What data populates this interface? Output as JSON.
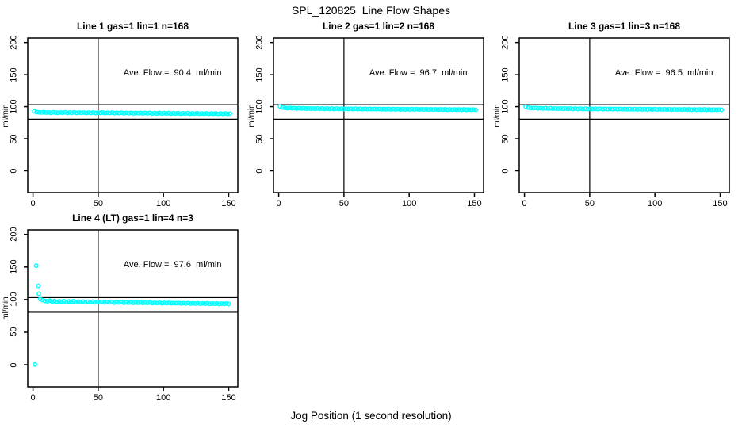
{
  "chart_data": {
    "type": "scatter",
    "title": "SPL_120825  Line Flow Shapes",
    "xlabel": "Jog Position (1 second resolution)",
    "ylabel": "ml/min",
    "x_ticks": [
      0,
      50,
      100,
      150
    ],
    "y_ticks": [
      0,
      50,
      100,
      150,
      200
    ],
    "xlim": [
      -4,
      157
    ],
    "ylim": [
      -34,
      207
    ],
    "grid": false,
    "legend": "none",
    "point_color": "#00FFFF",
    "axis_color": "#000000",
    "reference_lines": {
      "vertical_x": 50,
      "horizontal_y": [
        103,
        80.5
      ]
    },
    "subplots": [
      {
        "title": "Line 1 gas=1 lin=1 n=168",
        "annotation": "Ave. Flow =  90.4  ml/min",
        "ave_flow_ml_min": 90.4,
        "n": 168,
        "x_start": 1,
        "x_end": 151,
        "y": [
          92.8,
          91.6,
          91.2,
          90.9,
          91.4,
          90.7,
          91.1,
          90.5,
          91.3,
          90.8,
          90.4,
          91.0,
          90.6,
          91.2,
          90.3,
          90.9,
          90.5,
          91.1,
          90.2,
          90.8,
          90.4,
          91.0,
          90.1,
          90.7,
          90.3,
          90.9,
          90.0,
          90.6,
          90.2,
          90.8,
          89.9,
          90.5,
          90.1,
          90.7,
          89.8,
          90.4,
          90.0,
          90.6,
          89.7,
          90.3,
          89.9,
          90.5,
          89.6,
          90.2,
          89.8,
          90.4,
          89.5,
          90.1,
          89.7,
          90.3,
          89.4,
          90.0,
          89.6,
          90.2,
          89.3,
          89.9,
          89.5,
          90.1,
          89.2,
          89.8,
          89.4,
          90.0,
          89.1,
          89.7,
          89.3,
          89.9,
          89.0,
          89.6,
          89.2,
          89.8,
          88.9,
          89.5,
          89.1,
          89.7,
          88.8,
          89.4,
          89.0,
          89.6,
          88.7,
          89.3,
          88.9,
          89.5,
          88.6,
          89.2
        ],
        "outliers": []
      },
      {
        "title": "Line 2 gas=1 lin=2 n=168",
        "annotation": "Ave. Flow =  96.7  ml/min",
        "ave_flow_ml_min": 96.7,
        "n": 168,
        "x_start": 1,
        "x_end": 151,
        "y": [
          100.3,
          98.9,
          98.2,
          97.8,
          98.1,
          97.5,
          97.9,
          97.3,
          97.7,
          97.2,
          97.6,
          97.0,
          97.4,
          96.9,
          97.3,
          96.8,
          97.2,
          96.7,
          97.1,
          96.6,
          97.0,
          96.6,
          97.0,
          96.5,
          96.9,
          96.5,
          96.9,
          96.4,
          96.8,
          96.4,
          96.8,
          96.3,
          96.7,
          96.3,
          96.7,
          96.2,
          96.6,
          96.2,
          96.6,
          96.1,
          96.5,
          96.1,
          96.5,
          96.0,
          96.4,
          96.0,
          96.4,
          95.9,
          96.3,
          95.9,
          96.3,
          95.8,
          96.2,
          95.8,
          96.2,
          95.7,
          96.1,
          95.7,
          96.1,
          95.6,
          96.0,
          95.6,
          96.0,
          95.5,
          95.9,
          95.5,
          95.9,
          95.4,
          95.8,
          95.4,
          95.8,
          95.3,
          95.7,
          95.3,
          95.7,
          95.2,
          95.6,
          95.2,
          95.6,
          95.1,
          95.5,
          95.1,
          95.5,
          95.0
        ],
        "outliers": []
      },
      {
        "title": "Line 3 gas=1 lin=3 n=168",
        "annotation": "Ave. Flow =  96.5  ml/min",
        "ave_flow_ml_min": 96.5,
        "n": 168,
        "x_start": 1,
        "x_end": 151,
        "y": [
          99.8,
          98.5,
          98.0,
          97.7,
          98.0,
          97.4,
          97.8,
          97.2,
          97.6,
          97.1,
          97.5,
          96.9,
          97.3,
          96.8,
          97.2,
          96.7,
          97.1,
          96.6,
          97.0,
          96.5,
          96.9,
          96.5,
          96.9,
          96.4,
          96.8,
          96.4,
          96.8,
          96.3,
          96.7,
          96.3,
          96.7,
          96.2,
          96.6,
          96.2,
          96.6,
          96.1,
          96.5,
          96.1,
          96.5,
          96.0,
          96.4,
          96.0,
          96.4,
          95.9,
          96.3,
          95.9,
          96.3,
          95.8,
          96.2,
          95.8,
          96.2,
          95.7,
          96.1,
          95.7,
          96.1,
          95.6,
          96.0,
          95.6,
          96.0,
          95.5,
          95.9,
          95.5,
          95.9,
          95.4,
          95.8,
          95.4,
          95.8,
          95.3,
          95.7,
          95.3,
          95.7,
          95.2,
          95.6,
          95.2,
          95.6,
          95.1,
          95.5,
          95.1,
          95.5,
          95.0
        ],
        "outliers": []
      },
      {
        "title": "Line 4 (LT) gas=1 lin=4 n=3",
        "annotation": "Ave. Flow =  97.6  ml/min",
        "ave_flow_ml_min": 97.6,
        "n": 3,
        "x_start": 5.5,
        "x_end": 150,
        "y": [
          100.8,
          99.2,
          98.0,
          97.4,
          98.3,
          97.0,
          97.8,
          96.6,
          97.5,
          96.9,
          97.7,
          96.4,
          97.2,
          96.8,
          97.4,
          96.2,
          97.0,
          96.5,
          97.1,
          95.9,
          96.7,
          96.2,
          96.8,
          95.7,
          96.4,
          95.9,
          96.5,
          95.5,
          96.1,
          95.7,
          96.3,
          95.3,
          95.9,
          95.5,
          96.1,
          95.1,
          95.7,
          95.3,
          95.9,
          94.9,
          95.5,
          95.1,
          95.7,
          94.8,
          95.3,
          94.9,
          95.5,
          94.6,
          95.1,
          94.7,
          95.3,
          94.4,
          94.9,
          94.5,
          95.1,
          94.3,
          94.7,
          94.3,
          94.9,
          94.1,
          94.5,
          94.1,
          94.7,
          93.9,
          94.3,
          93.9,
          94.5,
          93.7,
          94.1,
          93.7,
          94.3,
          93.5,
          93.9,
          93.5,
          94.1,
          93.3,
          93.7,
          93.4,
          93.9,
          93.2
        ],
        "outliers": [
          [
            1.5,
            0.5
          ],
          [
            2.5,
            152
          ],
          [
            4,
            121
          ],
          [
            4.5,
            109
          ]
        ]
      }
    ]
  }
}
